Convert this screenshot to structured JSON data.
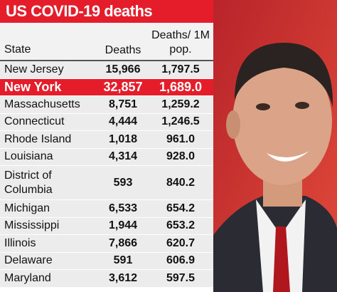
{
  "title": "US COVID-19 deaths",
  "table": {
    "header": [
      "State",
      "Deaths",
      "Deaths/ 1M pop."
    ],
    "rows": [
      [
        "New Jersey",
        "15,966",
        "1,797.5"
      ],
      [
        "New York",
        "32,857",
        "1,689.0"
      ],
      [
        "Massachusetts",
        "8,751",
        "1,259.2"
      ],
      [
        "Connecticut",
        "4,444",
        "1,246.5"
      ],
      [
        "Rhode Island",
        "1,018",
        "961.0"
      ],
      [
        "Louisiana",
        "4,314",
        "928.0"
      ],
      [
        "District of Columbia",
        "593",
        "840.2"
      ],
      [
        "Michigan",
        "6,533",
        "654.2"
      ],
      [
        "Mississippi",
        "1,944",
        "653.2"
      ],
      [
        "Illinois",
        "7,866",
        "620.7"
      ],
      [
        "Delaware",
        "591",
        "606.9"
      ],
      [
        "Maryland",
        "3,612",
        "597.5"
      ]
    ],
    "highlight": {
      "row": 1,
      "color": "#e51d2a"
    }
  }
}
